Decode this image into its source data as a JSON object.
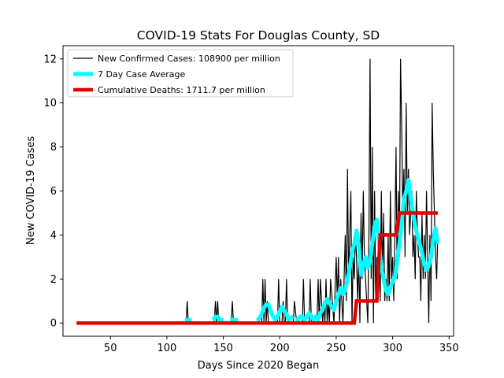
{
  "chart_data": {
    "type": "line",
    "title": "COVID-19 Stats For Douglas County, SD",
    "xlabel": "Days Since 2020 Began",
    "ylabel": "New COVID-19 Cases",
    "xlim": [
      8,
      354
    ],
    "ylim": [
      -0.6,
      12.6
    ],
    "xticks": [
      50,
      100,
      150,
      200,
      250,
      300,
      350
    ],
    "yticks": [
      0,
      2,
      4,
      6,
      8,
      10,
      12
    ],
    "grid": false,
    "legend_position": "top-left",
    "series": [
      {
        "name": "New Confirmed Cases: 108900 per million",
        "color": "#000000",
        "x": [
          20,
          117,
          118,
          119,
          120,
          142,
          143,
          144,
          145,
          146,
          147,
          157,
          158,
          159,
          180,
          184,
          185,
          186,
          187,
          188,
          189,
          190,
          191,
          195,
          197,
          198,
          199,
          200,
          202,
          203,
          204,
          205,
          206,
          207,
          212,
          213,
          215,
          220,
          221,
          222,
          225,
          226,
          227,
          228,
          230,
          233,
          234,
          235,
          236,
          238,
          239,
          240,
          241,
          242,
          243,
          244,
          245,
          248,
          250,
          251,
          252,
          253,
          254,
          256,
          258,
          259,
          260,
          261,
          262,
          263,
          264,
          265,
          266,
          267,
          268,
          269,
          270,
          271,
          272,
          273,
          274,
          275,
          276,
          277,
          278,
          279,
          280,
          281,
          282,
          283,
          284,
          285,
          286,
          287,
          288,
          289,
          290,
          291,
          292,
          293,
          294,
          295,
          296,
          297,
          298,
          299,
          300,
          301,
          302,
          303,
          304,
          305,
          306,
          307,
          308,
          309,
          310,
          311,
          312,
          313,
          314,
          315,
          316,
          317,
          318,
          319,
          320,
          321,
          322,
          323,
          324,
          325,
          326,
          327,
          328,
          329,
          330,
          331,
          332,
          333,
          334,
          335,
          336,
          337,
          338,
          339,
          340
        ],
        "values": [
          0,
          0,
          1,
          0,
          0,
          0,
          1,
          0,
          1,
          0,
          0,
          0,
          1,
          0,
          0,
          0,
          2,
          0,
          2,
          0,
          1,
          0,
          0,
          0,
          0,
          0,
          2,
          0,
          0,
          1,
          0,
          0,
          2,
          0,
          0,
          1,
          0,
          0,
          2,
          0,
          0,
          0,
          2,
          0,
          0,
          0,
          2,
          0,
          2,
          0,
          1,
          0,
          2,
          0,
          1,
          0,
          2,
          0,
          3,
          1,
          3,
          0,
          2,
          0,
          4,
          1,
          7,
          2,
          4,
          6,
          0,
          3,
          2,
          4,
          3,
          1,
          3,
          0,
          5,
          2,
          6,
          3,
          2,
          1,
          0,
          4,
          12,
          2,
          8,
          0,
          6,
          1,
          3,
          2,
          4,
          1,
          6,
          2,
          5,
          1,
          2,
          1,
          4,
          1,
          6,
          2,
          3,
          1,
          4,
          8,
          2,
          6,
          3,
          12,
          9,
          5,
          7,
          3,
          10,
          5,
          7,
          4,
          5,
          6,
          3,
          4,
          2,
          6,
          4,
          3,
          3,
          1,
          5,
          2,
          4,
          2,
          6,
          3,
          0,
          4,
          1,
          10,
          7,
          5,
          3,
          2,
          4
        ]
      },
      {
        "name": "7 Day Case Average",
        "color": "#00ffff",
        "segments": [
          {
            "x": [
              116,
              118,
              120,
              122
            ],
            "values": [
              0.14,
              0.14,
              0.14,
              0.14
            ]
          },
          {
            "x": [
              141,
              143,
              145,
              147,
              150
            ],
            "values": [
              0.14,
              0.29,
              0.29,
              0.14,
              0.14
            ]
          },
          {
            "x": [
              156,
              158,
              160,
              163
            ],
            "values": [
              0.14,
              0.14,
              0.14,
              0.14
            ]
          },
          {
            "x": [
              180,
              183,
              186,
              188,
              190,
              192,
              194,
              196,
              198,
              200,
              202,
              204,
              206,
              208,
              210,
              212
            ],
            "values": [
              0.1,
              0.3,
              0.7,
              0.85,
              0.85,
              0.55,
              0.3,
              0.15,
              0.3,
              0.55,
              0.75,
              0.55,
              0.4,
              0.15,
              0.25,
              0.3
            ]
          },
          {
            "x": [
              214,
              216,
              218,
              220,
              222,
              224,
              226,
              228,
              230,
              232,
              234,
              236,
              238,
              240,
              242,
              244,
              246,
              248,
              250,
              252,
              254,
              256,
              258,
              260,
              262,
              264,
              266,
              268,
              270,
              272,
              274,
              276,
              278,
              280,
              282,
              284,
              286,
              288,
              290,
              292,
              294,
              296,
              298,
              300,
              302,
              304,
              306,
              308,
              310,
              312,
              314,
              316,
              318,
              320,
              322,
              324,
              326,
              328,
              330,
              332,
              334,
              336,
              338,
              340
            ],
            "values": [
              0.15,
              0.15,
              0.3,
              0.3,
              0.15,
              0.3,
              0.45,
              0.3,
              0.15,
              0.3,
              0.15,
              0.45,
              0.6,
              0.9,
              1.1,
              0.9,
              0.75,
              0.6,
              1.0,
              1.3,
              1.6,
              1.3,
              1.5,
              2.0,
              2.5,
              3.2,
              3.6,
              4.2,
              3.6,
              2.2,
              2.6,
              3.0,
              2.5,
              2.8,
              3.6,
              4.4,
              4.7,
              3.6,
              2.5,
              2.0,
              1.5,
              1.3,
              1.6,
              1.9,
              2.1,
              2.8,
              3.6,
              4.5,
              5.6,
              6.0,
              6.5,
              5.7,
              5.0,
              4.4,
              4.0,
              3.6,
              3.2,
              2.7,
              2.4,
              2.6,
              3.0,
              3.8,
              4.3,
              3.6
            ]
          }
        ]
      },
      {
        "name": "Cumulative Deaths: 1711.7 per million",
        "color": "#e60000",
        "x": [
          20,
          266,
          268,
          286,
          289,
          303,
          306,
          340
        ],
        "values": [
          0,
          0,
          1,
          1,
          4,
          4,
          5,
          5
        ]
      }
    ]
  }
}
